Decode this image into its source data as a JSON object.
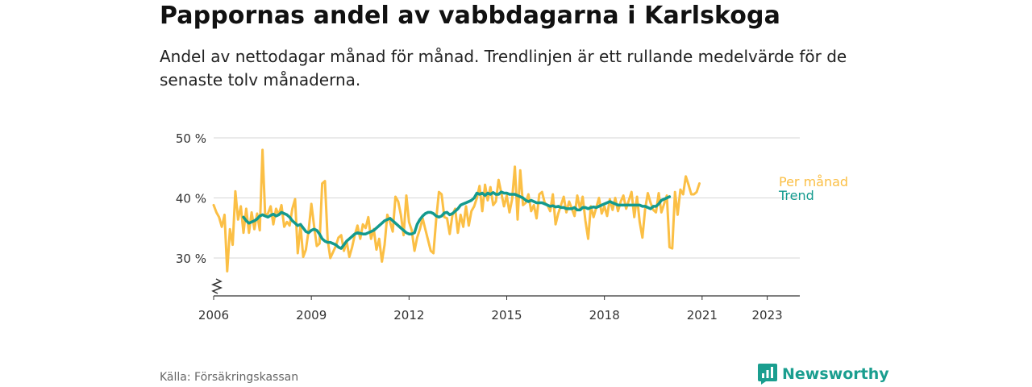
{
  "header": {
    "title": "Pappornas andel av vabbdagarna i Karlskoga",
    "subtitle": "Andel av nettodagar månad för månad. Trendlinjen är ett rullande medelvärde för de senaste tolv månaderna."
  },
  "footer": {
    "source": "Källa: Försäkringskassan",
    "brand": "Newsworthy",
    "brand_icon": "bar-chart-icon",
    "brand_color": "#1a9e8f"
  },
  "chart_data": {
    "type": "line",
    "title": "Pappornas andel av vabbdagarna i Karlskoga",
    "xlabel": "",
    "ylabel": "",
    "xlim": [
      "2006-01",
      "2024-01"
    ],
    "ylim": [
      25,
      50
    ],
    "axis_break": true,
    "grid": true,
    "x_ticks": [
      "2006",
      "2009",
      "2012",
      "2015",
      "2018",
      "2021",
      "2023"
    ],
    "y_ticks": [
      {
        "value": 30,
        "label": "30 %"
      },
      {
        "value": 40,
        "label": "40 %"
      },
      {
        "value": 50,
        "label": "50 %"
      }
    ],
    "legend": "inline-right",
    "series": [
      {
        "name": "Per månad",
        "color": "#fbbf45",
        "start": "2006-01",
        "values": [
          38.8,
          37.6,
          36.8,
          35.2,
          37.2,
          27.8,
          34.8,
          32.2,
          41.1,
          36.4,
          38.6,
          34.2,
          38.2,
          34.2,
          37.6,
          34.8,
          37.4,
          34.6,
          48.0,
          37.1,
          37.4,
          38.6,
          35.6,
          38.2,
          37.2,
          38.8,
          35.2,
          36.0,
          35.4,
          38.2,
          39.8,
          30.8,
          35.4,
          30.2,
          31.4,
          34.6,
          39.0,
          35.4,
          32.0,
          32.4,
          42.4,
          42.8,
          33.0,
          30.0,
          31.0,
          32.0,
          33.4,
          33.8,
          31.2,
          32.8,
          30.2,
          31.8,
          33.8,
          35.4,
          33.2,
          35.6,
          35.0,
          36.8,
          33.2,
          34.8,
          31.4,
          33.2,
          29.4,
          32.2,
          37.2,
          36.0,
          34.4,
          40.2,
          39.4,
          37.2,
          33.8,
          40.4,
          36.0,
          34.6,
          31.2,
          33.4,
          34.8,
          36.6,
          34.8,
          33.0,
          31.2,
          30.8,
          36.4,
          41.0,
          40.6,
          36.8,
          36.6,
          34.0,
          37.2,
          38.2,
          34.2,
          37.2,
          35.2,
          38.6,
          35.4,
          37.8,
          38.6,
          40.0,
          42.0,
          37.8,
          42.2,
          39.6,
          41.8,
          38.8,
          39.4,
          43.0,
          40.8,
          38.6,
          40.4,
          37.6,
          39.8,
          45.2,
          36.4,
          44.6,
          38.8,
          39.2,
          40.6,
          37.8,
          38.8,
          36.6,
          40.6,
          41.0,
          39.2,
          38.8,
          37.8,
          40.6,
          35.6,
          37.4,
          38.8,
          40.2,
          37.6,
          39.4,
          38.2,
          37.0,
          40.4,
          38.2,
          40.2,
          36.2,
          33.2,
          38.6,
          36.8,
          38.4,
          40.0,
          37.4,
          38.6,
          37.0,
          39.8,
          38.0,
          40.0,
          37.8,
          39.4,
          40.4,
          38.2,
          39.6,
          41.0,
          36.8,
          40.2,
          36.0,
          33.4,
          38.2,
          40.8,
          39.2,
          38.0,
          37.6,
          40.8,
          37.6,
          39.0,
          40.4,
          31.8,
          31.6,
          41.0,
          37.2,
          41.4,
          40.6,
          43.6,
          42.2,
          40.6,
          40.6,
          41.0,
          42.4
        ]
      },
      {
        "name": "Trend",
        "color": "#139a8e",
        "start": "2006-12",
        "values": [
          36.8,
          36.2,
          35.8,
          36.0,
          36.2,
          36.5,
          37.0,
          37.2,
          37.0,
          36.8,
          37.1,
          37.3,
          37.0,
          37.2,
          37.6,
          37.4,
          37.2,
          36.8,
          36.2,
          35.8,
          35.4,
          35.6,
          35.0,
          34.4,
          34.2,
          34.6,
          34.8,
          34.6,
          34.0,
          33.2,
          32.8,
          32.6,
          32.6,
          32.4,
          32.2,
          31.8,
          31.6,
          32.2,
          32.8,
          33.2,
          33.6,
          34.0,
          34.2,
          34.1,
          34.0,
          34.0,
          34.2,
          34.4,
          34.6,
          35.0,
          35.4,
          35.8,
          36.2,
          36.4,
          36.6,
          36.2,
          35.8,
          35.4,
          35.0,
          34.6,
          34.2,
          34.0,
          34.0,
          34.2,
          35.6,
          36.4,
          37.0,
          37.4,
          37.6,
          37.6,
          37.4,
          37.0,
          36.8,
          37.0,
          37.5,
          37.6,
          37.2,
          37.4,
          37.8,
          38.2,
          38.8,
          39.0,
          39.2,
          39.4,
          39.6,
          40.0,
          40.8,
          40.6,
          40.8,
          40.4,
          40.8,
          40.6,
          40.9,
          40.6,
          40.6,
          41.0,
          40.8,
          40.8,
          40.6,
          40.6,
          40.6,
          40.4,
          40.2,
          40.0,
          39.6,
          39.4,
          39.6,
          39.4,
          39.2,
          39.2,
          39.2,
          39.0,
          38.8,
          38.6,
          38.7,
          38.5,
          38.6,
          38.4,
          38.4,
          38.2,
          38.2,
          38.2,
          38.4,
          38.0,
          38.0,
          38.4,
          38.4,
          38.2,
          38.4,
          38.5,
          38.4,
          38.6,
          38.8,
          39.0,
          39.2,
          39.4,
          39.2,
          39.0,
          38.8,
          38.8,
          38.8,
          38.8,
          38.8,
          38.8,
          38.8,
          38.8,
          38.8,
          38.6,
          38.6,
          38.4,
          38.2,
          38.6,
          38.6,
          39.0,
          39.6,
          39.8,
          40.0,
          40.2
        ]
      }
    ]
  }
}
